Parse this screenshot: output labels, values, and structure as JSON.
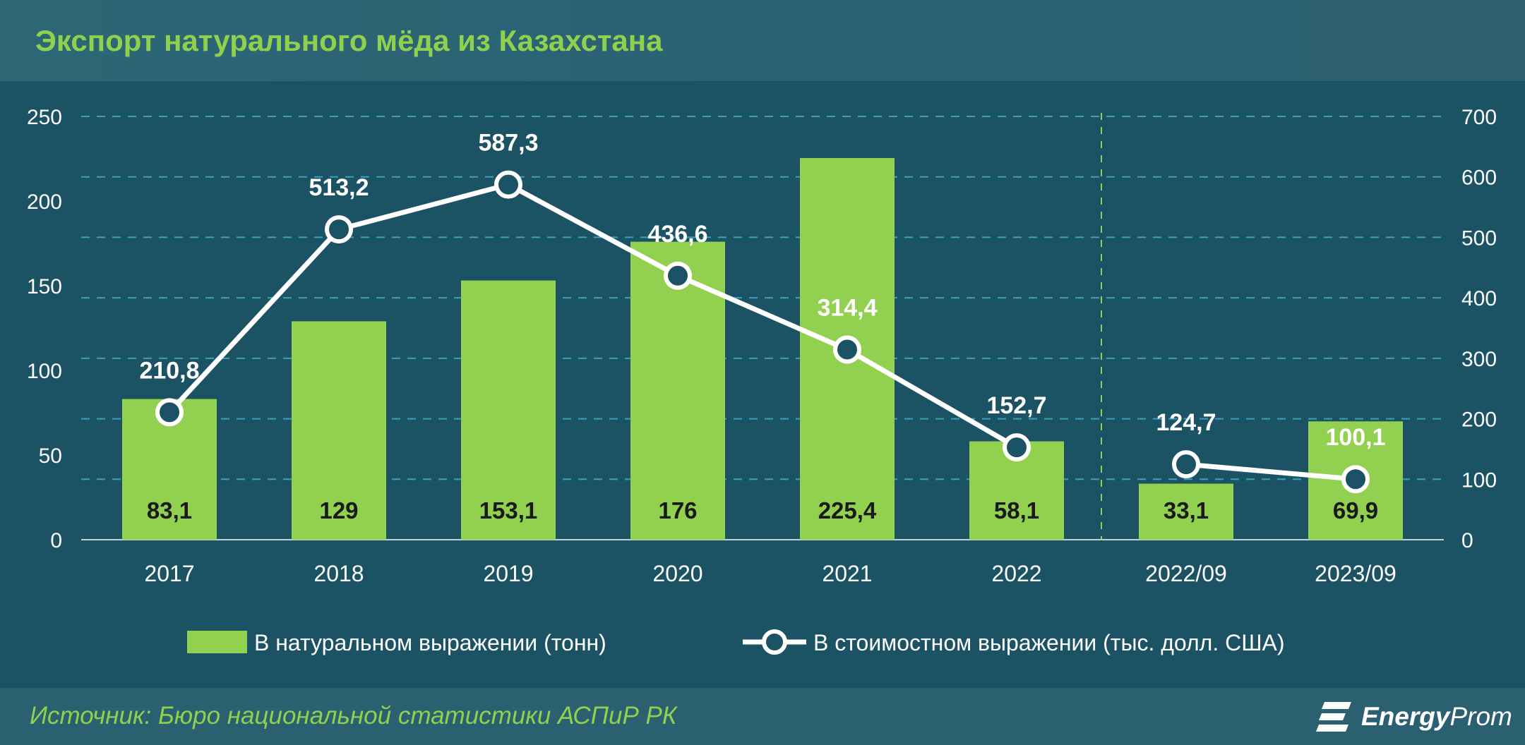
{
  "title": "Экспорт натурального мёда из Казахстана",
  "source": "Источник: Бюро национальной статистики АСПиР РК",
  "logo": {
    "bold": "Energy",
    "light": "Prom"
  },
  "colors": {
    "bar": "#92d050",
    "line": "#ffffff",
    "text": "#ffffff",
    "bar_label": "#1a1a1a",
    "title": "#8fd14f",
    "grid": "#3aa0bc",
    "divider": "#8fd14f",
    "plot_bg": "#1b5365"
  },
  "chart_data": {
    "type": "bar",
    "categories": [
      "2017",
      "2018",
      "2019",
      "2020",
      "2021",
      "2022",
      "2022/09",
      "2023/09"
    ],
    "series": [
      {
        "name": "В натуральном выражении (тонн)",
        "type": "bar",
        "axis": "left",
        "values": [
          83.1,
          129,
          153.1,
          176,
          225.4,
          58.1,
          33.1,
          69.9
        ],
        "labels": [
          "83,1",
          "129",
          "153,1",
          "176",
          "225,4",
          "58,1",
          "33,1",
          "69,9"
        ]
      },
      {
        "name": "В стоимостном выражении (тыс. долл. США)",
        "type": "line",
        "axis": "right",
        "values": [
          210.8,
          513.2,
          587.3,
          436.6,
          314.4,
          152.7,
          124.7,
          100.1
        ],
        "labels": [
          "210,8",
          "513,2",
          "587,3",
          "436,6",
          "314,4",
          "152,7",
          "124,7",
          "100,1"
        ]
      }
    ],
    "y_left": {
      "min": 0,
      "max": 250,
      "ticks": [
        "0",
        "50",
        "100",
        "150",
        "200",
        "250"
      ]
    },
    "y_right": {
      "min": 0,
      "max": 700,
      "ticks": [
        "0",
        "100",
        "200",
        "300",
        "400",
        "500",
        "600",
        "700"
      ]
    },
    "grid": true,
    "divider_after_category": "2022",
    "legend_position": "bottom-center"
  }
}
